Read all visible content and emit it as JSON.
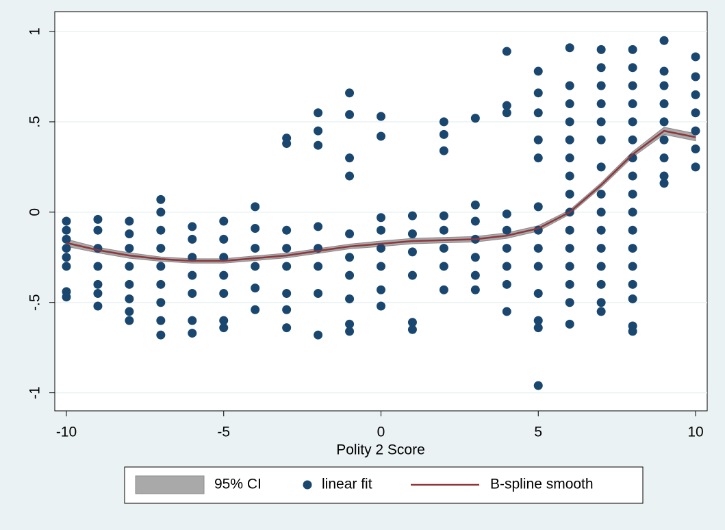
{
  "chart_data": {
    "type": "scatter",
    "x_label": "Polity 2 Score",
    "xlim": [
      -10.37,
      10.37
    ],
    "ylim": [
      -1.1,
      1.11
    ],
    "xticks": [
      -10,
      -5,
      0,
      5,
      10
    ],
    "yticks": [
      -1,
      {
        "value": -0.5,
        "label": "-.5"
      },
      0,
      {
        "value": 0.5,
        "label": ".5"
      },
      1
    ],
    "grid": true,
    "legend": "bottom",
    "ci": {
      "name": "95% CI",
      "color": "#a9a9a9",
      "x": [
        -10,
        -9,
        -8,
        -7,
        -6,
        -5,
        -4,
        -3,
        -2,
        -1,
        0,
        1,
        2,
        3,
        4,
        5,
        6,
        7,
        8,
        9,
        10
      ],
      "lower": [
        -0.19,
        -0.225,
        -0.255,
        -0.272,
        -0.282,
        -0.282,
        -0.268,
        -0.253,
        -0.228,
        -0.203,
        -0.19,
        -0.175,
        -0.17,
        -0.165,
        -0.145,
        -0.105,
        -0.012,
        0.137,
        0.305,
        0.43,
        0.395
      ],
      "upper": [
        -0.15,
        -0.195,
        -0.225,
        -0.248,
        -0.258,
        -0.258,
        -0.242,
        -0.227,
        -0.202,
        -0.177,
        -0.16,
        -0.145,
        -0.14,
        -0.135,
        -0.115,
        -0.075,
        0.012,
        0.163,
        0.335,
        0.47,
        0.435
      ]
    },
    "scatter": {
      "name": "linear fit",
      "color": "#1a476f",
      "x": [
        -10,
        -10,
        -10,
        -10,
        -10,
        -10,
        -10,
        -10,
        -9,
        -9,
        -9,
        -9,
        -9,
        -9,
        -9,
        -8,
        -8,
        -8,
        -8,
        -8,
        -8,
        -8,
        -8,
        -7,
        -7,
        -7,
        -7,
        -7,
        -7,
        -7,
        -7,
        -7,
        -6,
        -6,
        -6,
        -6,
        -6,
        -6,
        -6,
        -5,
        -5,
        -5,
        -5,
        -5,
        -5,
        -5,
        -4,
        -4,
        -4,
        -4,
        -4,
        -4,
        -3,
        -3,
        -3,
        -3,
        -3,
        -3,
        -3,
        -3,
        -2,
        -2,
        -2,
        -2,
        -2,
        -2,
        -2,
        -2,
        -1,
        -1,
        -1,
        -1,
        -1,
        -1,
        -1,
        -1,
        -1,
        -1,
        0,
        0,
        0,
        0,
        0,
        0,
        0,
        0,
        1,
        1,
        1,
        1,
        1,
        1,
        2,
        2,
        2,
        2,
        2,
        2,
        2,
        2,
        3,
        3,
        3,
        3,
        3,
        3,
        3,
        4,
        4,
        4,
        4,
        4,
        4,
        4,
        4,
        4,
        5,
        5,
        5,
        5,
        5,
        5,
        5,
        5,
        5,
        5,
        5,
        5,
        5,
        6,
        6,
        6,
        6,
        6,
        6,
        6,
        6,
        6,
        6,
        6,
        6,
        6,
        6,
        6,
        7,
        7,
        7,
        7,
        7,
        7,
        7,
        7,
        7,
        7,
        7,
        7,
        7,
        7,
        7,
        8,
        8,
        8,
        8,
        8,
        8,
        8,
        8,
        8,
        8,
        8,
        8,
        8,
        8,
        8,
        8,
        8,
        9,
        9,
        9,
        9,
        9,
        9,
        9,
        9,
        9,
        10,
        10,
        10,
        10,
        10,
        10,
        10
      ],
      "y": [
        -0.05,
        -0.1,
        -0.15,
        -0.2,
        -0.25,
        -0.3,
        -0.44,
        -0.47,
        -0.04,
        -0.1,
        -0.2,
        -0.3,
        -0.4,
        -0.45,
        -0.52,
        -0.05,
        -0.12,
        -0.2,
        -0.3,
        -0.4,
        -0.48,
        -0.55,
        -0.6,
        0.07,
        0.0,
        -0.1,
        -0.2,
        -0.3,
        -0.4,
        -0.5,
        -0.6,
        -0.68,
        -0.08,
        -0.15,
        -0.25,
        -0.35,
        -0.45,
        -0.6,
        -0.67,
        -0.05,
        -0.15,
        -0.25,
        -0.35,
        -0.45,
        -0.6,
        -0.64,
        0.03,
        -0.09,
        -0.2,
        -0.3,
        -0.42,
        -0.54,
        0.41,
        0.38,
        -0.1,
        -0.2,
        -0.3,
        -0.45,
        -0.54,
        -0.64,
        0.55,
        0.45,
        0.37,
        -0.08,
        -0.2,
        -0.3,
        -0.45,
        -0.68,
        0.66,
        0.54,
        0.3,
        0.2,
        -0.12,
        -0.25,
        -0.35,
        -0.48,
        -0.62,
        -0.66,
        0.53,
        0.42,
        -0.03,
        -0.1,
        -0.2,
        -0.3,
        -0.43,
        -0.52,
        -0.02,
        -0.12,
        -0.22,
        -0.35,
        -0.61,
        -0.65,
        0.5,
        0.43,
        0.34,
        -0.02,
        -0.1,
        -0.2,
        -0.3,
        -0.43,
        0.52,
        0.04,
        -0.05,
        -0.15,
        -0.25,
        -0.35,
        -0.43,
        0.89,
        0.59,
        0.55,
        -0.01,
        -0.1,
        -0.2,
        -0.3,
        -0.4,
        -0.55,
        0.78,
        0.66,
        0.55,
        0.4,
        0.3,
        0.03,
        -0.1,
        -0.2,
        -0.3,
        -0.45,
        -0.6,
        -0.64,
        -0.96,
        0.91,
        0.7,
        0.6,
        0.5,
        0.4,
        0.3,
        0.2,
        0.1,
        0.0,
        -0.1,
        -0.2,
        -0.3,
        -0.4,
        -0.5,
        -0.62,
        0.9,
        0.8,
        0.7,
        0.6,
        0.5,
        0.4,
        0.25,
        0.1,
        0.0,
        -0.1,
        -0.2,
        -0.3,
        -0.4,
        -0.5,
        -0.55,
        0.9,
        0.8,
        0.7,
        0.6,
        0.5,
        0.4,
        0.3,
        0.2,
        0.1,
        0.0,
        -0.1,
        -0.2,
        -0.3,
        -0.4,
        -0.48,
        -0.63,
        -0.66,
        0.95,
        0.78,
        0.7,
        0.6,
        0.5,
        0.4,
        0.3,
        0.2,
        0.16,
        0.86,
        0.75,
        0.65,
        0.55,
        0.45,
        0.35,
        0.25
      ]
    },
    "spline": {
      "name": "B-spline smooth",
      "color": "#90353b",
      "x": [
        -10,
        -9,
        -8,
        -7,
        -6,
        -5,
        -4,
        -3,
        -2,
        -1,
        0,
        1,
        2,
        3,
        4,
        5,
        6,
        7,
        8,
        9,
        10
      ],
      "values": [
        -0.17,
        -0.21,
        -0.24,
        -0.26,
        -0.27,
        -0.27,
        -0.255,
        -0.24,
        -0.215,
        -0.19,
        -0.175,
        -0.16,
        -0.155,
        -0.15,
        -0.13,
        -0.09,
        0.0,
        0.15,
        0.32,
        0.45,
        0.415
      ]
    }
  }
}
